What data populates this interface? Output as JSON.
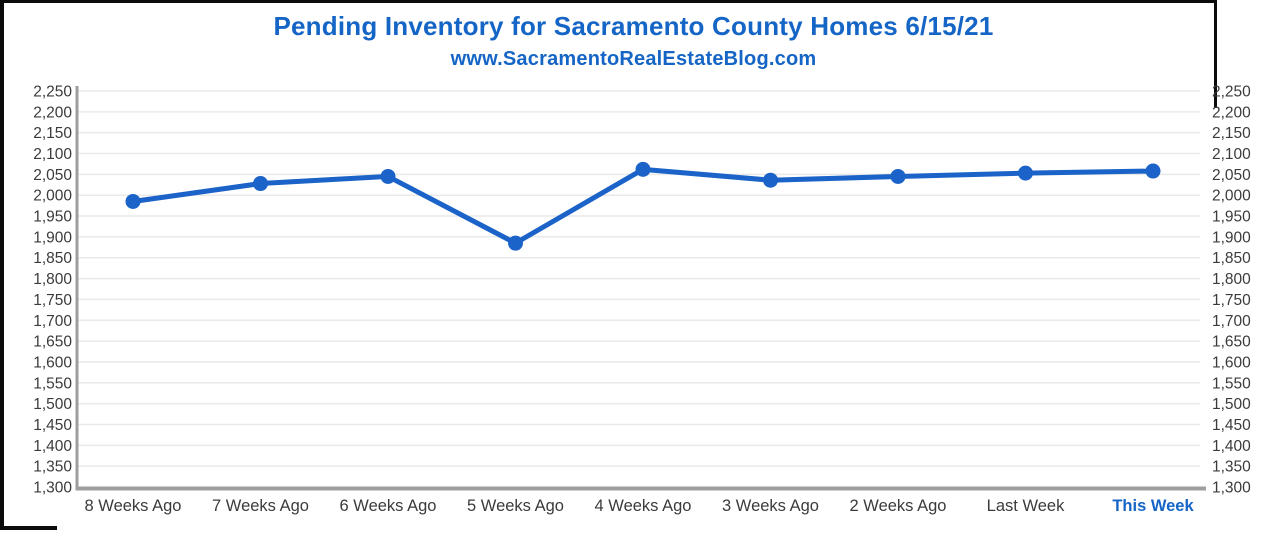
{
  "title": {
    "text": "Pending Inventory for Sacramento County Homes 6/15/21",
    "color": "#1565C6"
  },
  "subtitle": {
    "text": "www.SacramentoRealEstateBlog.com",
    "color": "#1565C6"
  },
  "chart_data": {
    "type": "line",
    "title": "Pending Inventory for Sacramento County Homes 6/15/21",
    "subtitle": "www.SacramentoRealEstateBlog.com",
    "categories": [
      "8 Weeks Ago",
      "7 Weeks Ago",
      "6 Weeks Ago",
      "5 Weeks Ago",
      "4 Weeks Ago",
      "3 Weeks Ago",
      "2 Weeks Ago",
      "Last Week",
      "This Week"
    ],
    "series": [
      {
        "name": "Pending Inventory",
        "values": [
          1985,
          2028,
          2045,
          1885,
          2062,
          2036,
          2045,
          2053,
          2058
        ]
      }
    ],
    "ylim": [
      1300,
      2250
    ],
    "ytick_step": 50,
    "ytick_values": [
      1300,
      1350,
      1400,
      1450,
      1500,
      1550,
      1600,
      1650,
      1700,
      1750,
      1800,
      1850,
      1900,
      1950,
      2000,
      2050,
      2100,
      2150,
      2200,
      2250
    ],
    "ytick_labels": [
      "1,300",
      "1,350",
      "1,400",
      "1,450",
      "1,500",
      "1,550",
      "1,600",
      "1,650",
      "1,700",
      "1,750",
      "1,800",
      "1,850",
      "1,900",
      "1,950",
      "2,000",
      "2,050",
      "2,100",
      "2,150",
      "2,200",
      "2,250"
    ],
    "grid": true,
    "legend": "none",
    "y_axis_mirrored_right": true,
    "line_color": "#1B63C8",
    "marker": "circle",
    "marker_color": "#1B63C8",
    "axis_line_color": "#9E9E9E",
    "gridline_color": "#E9E9E9",
    "tick_label_color": "#3B3B3B",
    "highlight_last_category": true,
    "highlight_color": "#1565C6"
  }
}
